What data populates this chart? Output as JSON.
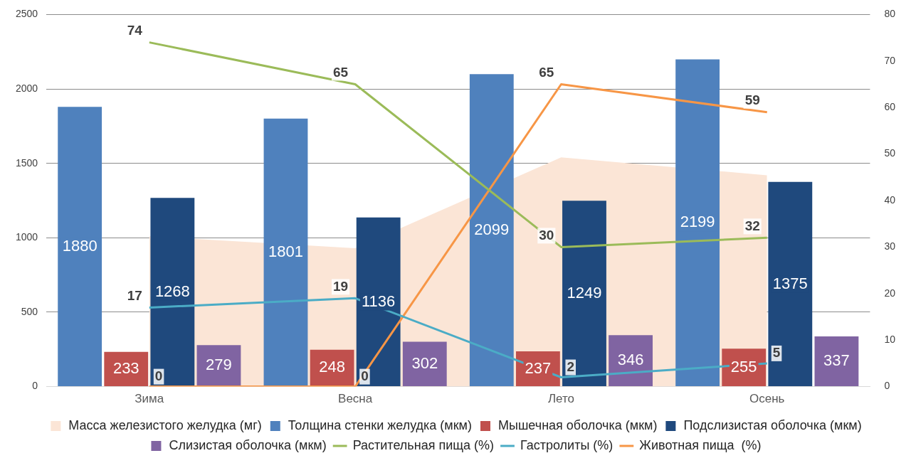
{
  "chart_data": {
    "type": "bar",
    "categories": [
      "Зима",
      "Весна",
      "Лето",
      "Осень"
    ],
    "series": [
      {
        "name": "Масса железистого желудка (мг)",
        "type": "area",
        "color": "#fbe5d6",
        "values": [
          1010,
          930,
          1540,
          1420
        ]
      },
      {
        "name": "Толщина стенки желудка (мкм)",
        "color": "#4f81bd",
        "values": [
          1880,
          1801,
          2099,
          2199
        ],
        "value_labels": [
          "1880",
          "1801",
          "2099",
          "2199"
        ]
      },
      {
        "name": "Мышечная оболочка (мкм)",
        "color": "#c0504d",
        "values": [
          233,
          248,
          237,
          255
        ],
        "value_labels": [
          "233",
          "248",
          "237",
          "255"
        ]
      },
      {
        "name": "Подслизистая оболочка (мкм)",
        "color": "#1f497d",
        "values": [
          1268,
          1136,
          1249,
          1375
        ],
        "value_labels": [
          "1268",
          "1136",
          "1249",
          "1375"
        ]
      },
      {
        "name": "Слизистая оболочка (мкм)",
        "color": "#8064a2",
        "values": [
          279,
          302,
          346,
          337
        ],
        "value_labels": [
          "279",
          "302",
          "346",
          "337"
        ]
      },
      {
        "name": "Растительная пища (%)",
        "type": "line",
        "axis": "y2",
        "color": "#9bbb59",
        "values": [
          74,
          65,
          30,
          32
        ],
        "value_labels": [
          "74",
          "65",
          "30",
          "32"
        ]
      },
      {
        "name": "Гастролиты (%)",
        "type": "line",
        "axis": "y2",
        "color": "#4bacc6",
        "values": [
          17,
          19,
          2,
          5
        ],
        "value_labels": [
          "17",
          "19",
          "2",
          "5"
        ]
      },
      {
        "name": "Животная пища  (%)",
        "type": "line",
        "axis": "y2",
        "color": "#f79646",
        "values": [
          0,
          0,
          65,
          59
        ],
        "value_labels": [
          "0",
          "0",
          "65",
          "59"
        ]
      }
    ],
    "ylim": [
      0,
      2500
    ],
    "yticks": [
      0,
      500,
      1000,
      1500,
      2000,
      2500
    ],
    "y2lim": [
      0,
      80
    ],
    "y2ticks": [
      0,
      10,
      20,
      30,
      40,
      50,
      60,
      70,
      80
    ],
    "grid": "y",
    "legend": "bottom",
    "marker": "none",
    "line_style": "solid"
  }
}
